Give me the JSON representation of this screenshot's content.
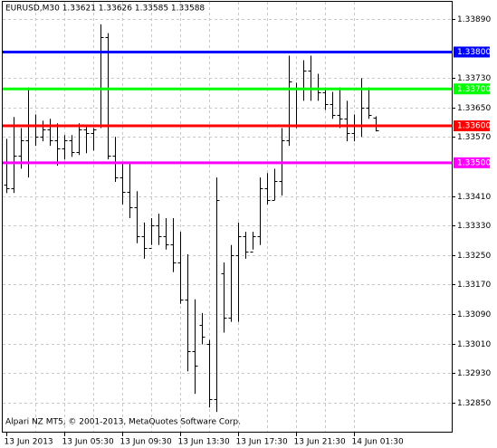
{
  "chart_data": {
    "type": "ohlc",
    "title": "EURUSD,M30  1.33621 1.33626 1.33585 1.33588",
    "annotation": "Alpari NZ MT5, © 2001-2013, MetaQuotes Software Corp.",
    "color": "#000000",
    "grid": true,
    "categories": [
      "13 Jun 2013",
      null,
      null,
      null,
      null,
      null,
      null,
      null,
      "13 Jun 05:30",
      null,
      null,
      null,
      null,
      null,
      null,
      null,
      "13 Jun 09:30",
      null,
      null,
      null,
      null,
      null,
      null,
      null,
      "13 Jun 13:30",
      null,
      null,
      null,
      null,
      null,
      null,
      null,
      "13 Jun 17:30",
      null,
      null,
      null,
      null,
      null,
      null,
      null,
      "13 Jun 21:30",
      null,
      null,
      null,
      null,
      null,
      null,
      null,
      "14 Jun 01:30",
      null,
      null,
      null
    ],
    "open": [
      1.3344,
      1.3343,
      1.3352,
      1.3356,
      1.336,
      1.3357,
      1.3359,
      1.3356,
      1.3354,
      1.3356,
      1.3353,
      1.3359,
      1.3358,
      1.336,
      1.3384,
      1.3352,
      1.3346,
      1.3342,
      1.3338,
      1.333,
      1.3327,
      1.3333,
      1.333,
      1.3328,
      1.3323,
      1.3313,
      1.3299,
      1.3306,
      1.3301,
      1.3286,
      1.332,
      1.3308,
      1.3325,
      1.333,
      1.3326,
      1.333,
      1.3343,
      1.334,
      1.3345,
      1.3356,
      1.337,
      1.337,
      1.3375,
      1.337,
      1.3369,
      1.3366,
      1.3363,
      1.3362,
      1.3358,
      1.336,
      1.3365,
      1.33621
    ],
    "high": [
      1.33565,
      1.33624,
      1.33594,
      1.33704,
      1.33631,
      1.33614,
      1.33619,
      1.33607,
      1.33575,
      1.33575,
      1.33607,
      1.336,
      1.33594,
      1.33875,
      1.33851,
      1.3357,
      1.33497,
      1.33502,
      1.33423,
      1.33338,
      1.3335,
      1.33362,
      1.3335,
      1.3335,
      1.33313,
      1.33252,
      1.3313,
      1.33093,
      1.3302,
      1.3346,
      1.3323,
      1.33277,
      1.33338,
      1.33313,
      1.33313,
      1.3346,
      1.33472,
      1.33484,
      1.33594,
      1.3379,
      1.33717,
      1.33778,
      1.3379,
      1.33741,
      1.33704,
      1.33692,
      1.33704,
      1.33668,
      1.33631,
      1.33729,
      1.33704,
      1.33626
    ],
    "low": [
      1.33418,
      1.33418,
      1.33484,
      1.3346,
      1.33546,
      1.33558,
      1.33546,
      1.33492,
      1.33509,
      1.33516,
      1.33521,
      1.33526,
      1.33533,
      1.33594,
      1.33509,
      1.33448,
      1.33387,
      1.3335,
      1.33282,
      1.3324,
      1.33277,
      1.33277,
      1.33265,
      1.33204,
      1.33118,
      1.32935,
      1.32874,
      1.33008,
      1.32837,
      1.32825,
      1.3304,
      1.33069,
      1.33069,
      1.3324,
      1.33265,
      1.33277,
      1.33387,
      1.33399,
      1.33411,
      1.33546,
      1.33594,
      1.33668,
      1.33668,
      1.33668,
      1.33643,
      1.33619,
      1.33594,
      1.33558,
      1.33558,
      1.3357,
      1.33619,
      1.33585
    ],
    "close": [
      1.3343,
      1.3352,
      1.3356,
      1.336,
      1.3357,
      1.3359,
      1.3356,
      1.3354,
      1.3356,
      1.3353,
      1.3359,
      1.3358,
      1.3359,
      1.3384,
      1.3352,
      1.3346,
      1.3342,
      1.3338,
      1.333,
      1.3327,
      1.3333,
      1.333,
      1.3328,
      1.3323,
      1.3313,
      1.3299,
      1.3295,
      1.3303,
      1.3286,
      1.334,
      1.3308,
      1.3325,
      1.333,
      1.3326,
      1.333,
      1.3343,
      1.334,
      1.3345,
      1.3356,
      1.3372,
      1.337,
      1.3375,
      1.337,
      1.3369,
      1.3366,
      1.3363,
      1.3362,
      1.3358,
      1.336,
      1.3365,
      1.3363,
      1.33588
    ],
    "ylim": [
      1.32769,
      1.33936
    ],
    "yticks": [
      {
        "value": 1.3389,
        "label": "1.33890"
      },
      {
        "value": 1.3373,
        "label": "1.33730"
      },
      {
        "value": 1.3365,
        "label": "1.33650"
      },
      {
        "value": 1.3357,
        "label": "1.33570"
      },
      {
        "value": 1.3341,
        "label": "1.33410"
      },
      {
        "value": 1.3333,
        "label": "1.33330"
      },
      {
        "value": 1.3325,
        "label": "1.33250"
      },
      {
        "value": 1.3317,
        "label": "1.33170"
      },
      {
        "value": 1.3309,
        "label": "1.33090"
      },
      {
        "value": 1.3301,
        "label": "1.33010"
      },
      {
        "value": 1.3293,
        "label": "1.32930"
      },
      {
        "value": 1.3285,
        "label": "1.32850"
      }
    ],
    "hlines": [
      {
        "value": 1.338,
        "label": "1.33800",
        "color": "#0000ff"
      },
      {
        "value": 1.337,
        "label": "1.33700",
        "color": "#00ff00"
      },
      {
        "value": 1.336,
        "label": "1.33600",
        "color": "#ff0000"
      },
      {
        "value": 1.335,
        "label": "1.33500",
        "color": "#ff00ff"
      }
    ]
  }
}
